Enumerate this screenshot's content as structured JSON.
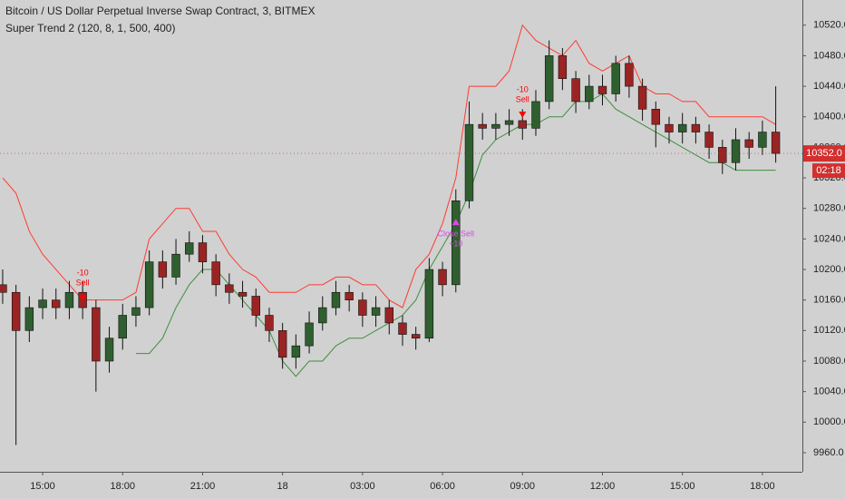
{
  "chart_data": {
    "type": "candlestick",
    "title": "Bitcoin / US Dollar Perpetual Inverse Swap Contract, 3, BITMEX",
    "subtitle": "Super Trend 2 (120, 8, 1, 500, 400)",
    "x": [
      13.5,
      14,
      14.5,
      15,
      15.5,
      16,
      16.5,
      17,
      17.5,
      18,
      18.5,
      19,
      19.5,
      20,
      20.5,
      21,
      21.5,
      22,
      22.5,
      23,
      23.5,
      24,
      24.5,
      25,
      25.5,
      26,
      26.5,
      27,
      27.5,
      28,
      28.5,
      29,
      29.5,
      30,
      30.5,
      31,
      31.5,
      32,
      32.5,
      33,
      33.5,
      34,
      34.5,
      35,
      35.5,
      36,
      36.5,
      37,
      37.5,
      38,
      38.5,
      39,
      39.5,
      40,
      40.5,
      41,
      41.5,
      42,
      42.5
    ],
    "open": [
      10180,
      10170,
      10120,
      10150,
      10160,
      10150,
      10170,
      10150,
      10080,
      10110,
      10140,
      10150,
      10210,
      10190,
      10220,
      10235,
      10210,
      10180,
      10170,
      10165,
      10140,
      10120,
      10085,
      10100,
      10130,
      10150,
      10170,
      10160,
      10140,
      10150,
      10130,
      10115,
      10110,
      10200,
      10180,
      10290,
      10390,
      10385,
      10390,
      10395,
      10385,
      10420,
      10480,
      10450,
      10420,
      10440,
      10430,
      10470,
      10440,
      10410,
      10390,
      10380,
      10390,
      10380,
      10360,
      10340,
      10370,
      10360,
      10380
    ],
    "high": [
      10200,
      10180,
      10165,
      10175,
      10175,
      10185,
      10185,
      10160,
      10125,
      10155,
      10165,
      10225,
      10225,
      10240,
      10250,
      10245,
      10220,
      10195,
      10185,
      10175,
      10150,
      10130,
      10115,
      10145,
      10165,
      10185,
      10180,
      10170,
      10165,
      10160,
      10140,
      10125,
      10215,
      10210,
      10305,
      10420,
      10405,
      10405,
      10410,
      10410,
      10435,
      10500,
      10490,
      10460,
      10455,
      10455,
      10480,
      10480,
      10450,
      10420,
      10400,
      10405,
      10400,
      10390,
      10370,
      10385,
      10380,
      10395,
      10440
    ],
    "low": [
      10155,
      9970,
      10105,
      10135,
      10135,
      10135,
      10135,
      10040,
      10065,
      10095,
      10125,
      10140,
      10175,
      10180,
      10210,
      10195,
      10165,
      10155,
      10150,
      10125,
      10105,
      10070,
      10070,
      10090,
      10120,
      10140,
      10145,
      10125,
      10125,
      10115,
      10100,
      10095,
      10105,
      10165,
      10170,
      10280,
      10370,
      10370,
      10375,
      10370,
      10375,
      10410,
      10435,
      10405,
      10410,
      10415,
      10420,
      10425,
      10395,
      10360,
      10365,
      10365,
      10365,
      10345,
      10325,
      10330,
      10345,
      10350,
      10340
    ],
    "close": [
      10170,
      10120,
      10150,
      10160,
      10150,
      10170,
      10150,
      10080,
      10110,
      10140,
      10150,
      10210,
      10190,
      10220,
      10235,
      10210,
      10180,
      10170,
      10165,
      10140,
      10120,
      10085,
      10100,
      10130,
      10150,
      10170,
      10160,
      10140,
      10150,
      10130,
      10115,
      10110,
      10200,
      10180,
      10290,
      10390,
      10385,
      10390,
      10395,
      10385,
      10420,
      10480,
      10450,
      10420,
      10440,
      10430,
      10470,
      10440,
      10410,
      10390,
      10380,
      10390,
      10380,
      10360,
      10340,
      10370,
      10360,
      10380,
      10352
    ],
    "up_color": "#2f5f2f",
    "down_color": "#9a2424",
    "series": [
      {
        "color": "#ff3b30",
        "values": [
          10320,
          10300,
          10250,
          10220,
          10200,
          10180,
          10160,
          10160,
          10160,
          10160,
          10170,
          10240,
          10260,
          10280,
          10280,
          10250,
          10250,
          10220,
          10200,
          10190,
          10170,
          10170,
          10170,
          10180,
          10180,
          10190,
          10190,
          10180,
          10180,
          10160,
          10150,
          10200,
          10220,
          10260,
          10320,
          10440,
          10440,
          10440,
          10460,
          10520,
          10500,
          10490,
          10480,
          10500,
          10470,
          10460,
          10470,
          10480,
          10440,
          10430,
          10430,
          10420,
          10420,
          10400,
          10400,
          10400,
          10400,
          10400,
          10390
        ]
      },
      {
        "color": "#3f8f3f",
        "values": [
          null,
          null,
          null,
          null,
          null,
          null,
          null,
          null,
          null,
          null,
          10090,
          10090,
          10110,
          10150,
          10180,
          10200,
          10200,
          10180,
          10160,
          10140,
          10120,
          10080,
          10060,
          10080,
          10080,
          10100,
          10110,
          10110,
          10120,
          10130,
          10140,
          10160,
          10200,
          10230,
          10260,
          10300,
          10350,
          10370,
          10380,
          10390,
          10390,
          10400,
          10400,
          10420,
          10420,
          10430,
          10410,
          10400,
          10390,
          10380,
          10370,
          10360,
          10350,
          10340,
          10340,
          10330,
          10330,
          10330,
          10330
        ]
      }
    ],
    "annotations": [
      {
        "x": 16.5,
        "y": 10155,
        "lines": [
          "-10",
          "Sell"
        ],
        "color": "#ff0000",
        "direction": "down"
      },
      {
        "x": 30.5,
        "y": 10270,
        "lines": [
          "Close Sell",
          "+10"
        ],
        "color": "#d84ae8",
        "direction": "up"
      },
      {
        "x": 33.0,
        "y": 10395,
        "lines": [
          "-10",
          "Sell"
        ],
        "color": "#ff0000",
        "direction": "down"
      }
    ],
    "price_tag": {
      "value": 10352,
      "label": "10352.0"
    },
    "countdown": "02:18",
    "xlim": [
      13.4,
      43.5
    ],
    "xticks": [
      {
        "value": 15,
        "label": "15:00"
      },
      {
        "value": 18,
        "label": "18:00"
      },
      {
        "value": 21,
        "label": "21:00"
      },
      {
        "value": 24,
        "label": "18"
      },
      {
        "value": 27,
        "label": "03:00"
      },
      {
        "value": 30,
        "label": "06:00"
      },
      {
        "value": 33,
        "label": "09:00"
      },
      {
        "value": 36,
        "label": "12:00"
      },
      {
        "value": 39,
        "label": "15:00"
      },
      {
        "value": 42,
        "label": "18:00"
      }
    ],
    "ylim": [
      9935,
      10553
    ],
    "yticks": [
      {
        "value": 9960,
        "label": "9960.0"
      },
      {
        "value": 10000,
        "label": "10000.0"
      },
      {
        "value": 10040,
        "label": "10040.0"
      },
      {
        "value": 10080,
        "label": "10080.0"
      },
      {
        "value": 10120,
        "label": "10120.0"
      },
      {
        "value": 10160,
        "label": "10160.0"
      },
      {
        "value": 10200,
        "label": "10200.0"
      },
      {
        "value": 10240,
        "label": "10240.0"
      },
      {
        "value": 10280,
        "label": "10280.0"
      },
      {
        "value": 10320,
        "label": "10320.0"
      },
      {
        "value": 10360,
        "label": "10360.0"
      },
      {
        "value": 10400,
        "label": "10400.0"
      },
      {
        "value": 10440,
        "label": "10440.0"
      },
      {
        "value": 10480,
        "label": "10480.0"
      },
      {
        "value": 10520,
        "label": "10520.0"
      }
    ],
    "grid": false
  }
}
